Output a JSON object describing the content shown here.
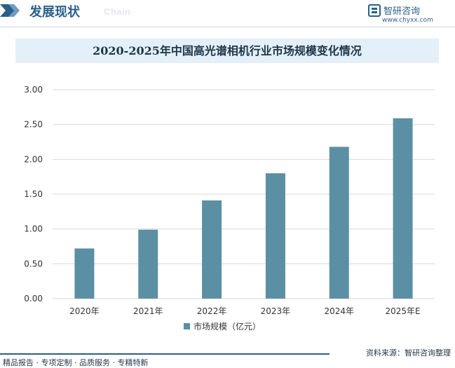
{
  "header": {
    "section_title": "发展现状",
    "section_subtitle": "Chain",
    "brand_name": "智研咨询",
    "brand_url": "www.chyxx.com"
  },
  "colors": {
    "accent": "#2b5f8a",
    "bar": "#5b8fa3",
    "title_band": "#e3f0f9",
    "grid": "#d9d9d9"
  },
  "chart_data": {
    "type": "bar",
    "title": "2020-2025年中国高光谱相机行业市场规模变化情况",
    "categories": [
      "2020年",
      "2021年",
      "2022年",
      "2023年",
      "2024年",
      "2025年E"
    ],
    "series": [
      {
        "name": "市场规模（亿元）",
        "values": [
          0.72,
          0.99,
          1.41,
          1.8,
          2.18,
          2.59
        ]
      }
    ],
    "ylim": [
      0,
      3
    ],
    "yticks": [
      "0.00",
      "0.50",
      "1.00",
      "1.50",
      "2.00",
      "2.50",
      "3.00"
    ],
    "grid": true,
    "legend": "bottom",
    "xlabel": "",
    "ylabel": ""
  },
  "footer": {
    "left": "精品报告 · 专项定制 · 品质服务 · 专精特新",
    "right": "资料来源：智研咨询整理"
  }
}
